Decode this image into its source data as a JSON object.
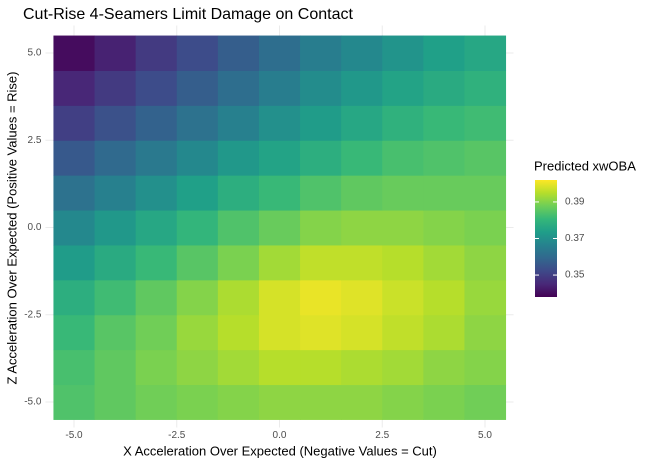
{
  "chart_data": {
    "type": "heatmap",
    "title": "Cut-Rise 4-Seamers Limit Damage on Contact",
    "x_label": "X Acceleration Over Expected (Negative Values = Cut)",
    "y_label": "Z Acceleration Over Expected (Positive Values = Rise)",
    "legend_title": "Predicted xwOBA",
    "x": [
      -5,
      -4,
      -3,
      -2,
      -1,
      0,
      1,
      2,
      3,
      4,
      5
    ],
    "y": [
      -5,
      -4,
      -3,
      -2,
      -1,
      0,
      1,
      2,
      3,
      4,
      5
    ],
    "values": [
      [
        0.384,
        0.386,
        0.388,
        0.389,
        0.39,
        0.391,
        0.391,
        0.391,
        0.39,
        0.389,
        0.388
      ],
      [
        0.383,
        0.386,
        0.389,
        0.391,
        0.393,
        0.395,
        0.395,
        0.394,
        0.393,
        0.391,
        0.39
      ],
      [
        0.381,
        0.385,
        0.388,
        0.392,
        0.395,
        0.398,
        0.399,
        0.398,
        0.396,
        0.394,
        0.391
      ],
      [
        0.378,
        0.382,
        0.386,
        0.39,
        0.394,
        0.398,
        0.4,
        0.399,
        0.397,
        0.395,
        0.392
      ],
      [
        0.373,
        0.377,
        0.381,
        0.385,
        0.389,
        0.393,
        0.396,
        0.396,
        0.395,
        0.393,
        0.391
      ],
      [
        0.368,
        0.372,
        0.376,
        0.38,
        0.384,
        0.387,
        0.39,
        0.391,
        0.391,
        0.39,
        0.389
      ],
      [
        0.362,
        0.366,
        0.37,
        0.374,
        0.378,
        0.381,
        0.384,
        0.386,
        0.387,
        0.387,
        0.387
      ],
      [
        0.356,
        0.36,
        0.364,
        0.368,
        0.372,
        0.375,
        0.378,
        0.381,
        0.383,
        0.384,
        0.385
      ],
      [
        0.35,
        0.354,
        0.358,
        0.362,
        0.366,
        0.37,
        0.373,
        0.376,
        0.379,
        0.381,
        0.382
      ],
      [
        0.345,
        0.349,
        0.353,
        0.357,
        0.361,
        0.365,
        0.369,
        0.372,
        0.375,
        0.377,
        0.379
      ],
      [
        0.34,
        0.344,
        0.349,
        0.353,
        0.357,
        0.361,
        0.365,
        0.368,
        0.371,
        0.374,
        0.376
      ]
    ],
    "xlim": [
      -5.5,
      5.5
    ],
    "ylim": [
      -5.5,
      5.5
    ],
    "xticks": [
      {
        "value": -5,
        "label": "-5.0"
      },
      -2.5,
      {
        "value": 0,
        "label": "0.0"
      },
      2.5,
      {
        "value": 5,
        "label": "5.0"
      }
    ],
    "yticks": [
      {
        "value": -5,
        "label": "-5.0"
      },
      -2.5,
      {
        "value": 0,
        "label": "0.0"
      },
      2.5,
      {
        "value": 5,
        "label": "5.0"
      }
    ],
    "clim": [
      0.338,
      0.402
    ],
    "cticks": [
      0.35,
      0.37,
      0.39
    ],
    "colorscale": [
      "#440154",
      "#482878",
      "#3e4989",
      "#31688e",
      "#26828e",
      "#1f9e89",
      "#35b779",
      "#6ece58",
      "#b5de2b",
      "#fde725"
    ],
    "grid": true
  }
}
